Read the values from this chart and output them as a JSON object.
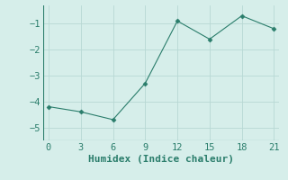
{
  "x": [
    0,
    3,
    6,
    9,
    12,
    15,
    18,
    21
  ],
  "y": [
    -4.2,
    -4.4,
    -4.7,
    -3.3,
    -0.9,
    -1.6,
    -0.7,
    -1.2
  ],
  "xlabel": "Humidex (Indice chaleur)",
  "xlim": [
    -0.5,
    21.5
  ],
  "ylim": [
    -5.5,
    -0.3
  ],
  "yticks": [
    -5,
    -4,
    -3,
    -2,
    -1
  ],
  "xticks": [
    0,
    3,
    6,
    9,
    12,
    15,
    18,
    21
  ],
  "line_color": "#2a7d6b",
  "marker": "D",
  "marker_size": 2.5,
  "bg_color": "#d6eeea",
  "grid_color": "#b8d8d4",
  "tick_fontsize": 7.5,
  "label_fontsize": 8,
  "figsize": [
    3.2,
    2.0
  ],
  "dpi": 100
}
